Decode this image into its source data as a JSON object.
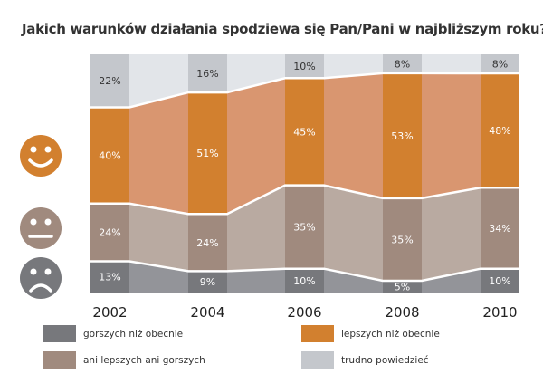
{
  "chart_data": {
    "type": "bar",
    "stacked": true,
    "percent": true,
    "title": "Jakich warunków działania spodziewa się Pan/Pani w najbliższym roku?",
    "categories": [
      "2002",
      "2004",
      "2006",
      "2008",
      "2010"
    ],
    "series": [
      {
        "name": "gorszych niż obecnie",
        "color": "#77787c",
        "band_color": "#939499",
        "values": [
          13,
          9,
          10,
          5,
          10
        ]
      },
      {
        "name": "ani lepszych ani gorszych",
        "color": "#a08a7e",
        "band_color": "#b9aaa1",
        "values": [
          24,
          24,
          35,
          35,
          34
        ]
      },
      {
        "name": "lepszych niż obecnie",
        "color": "#d2802f",
        "band_color": "#d99670",
        "values": [
          40,
          51,
          45,
          53,
          48
        ]
      },
      {
        "name": "trudno powiedzieć",
        "color": "#c4c7cc",
        "band_color": "#e2e5e9",
        "values": [
          22,
          16,
          10,
          8,
          8
        ]
      }
    ],
    "value_format": "{v}%",
    "ylim": [
      0,
      100
    ],
    "legend": "bottom",
    "faces": [
      {
        "name": "smiley-happy",
        "color": "#d2802f",
        "series": "lepszych niż obecnie"
      },
      {
        "name": "smiley-neutral",
        "color": "#a08a7e",
        "series": "ani lepszych ani gorszych"
      },
      {
        "name": "smiley-sad",
        "color": "#77787c",
        "series": "gorszych niż obecnie"
      }
    ]
  },
  "legend": {
    "items": [
      {
        "label": "gorszych niż obecnie",
        "color": "#77787c"
      },
      {
        "label": "lepszych niż obecnie",
        "color": "#d2802f"
      },
      {
        "label": "ani lepszych ani gorszych",
        "color": "#a08a7e"
      },
      {
        "label": "trudno powiedzieć",
        "color": "#c4c7cc"
      }
    ]
  }
}
